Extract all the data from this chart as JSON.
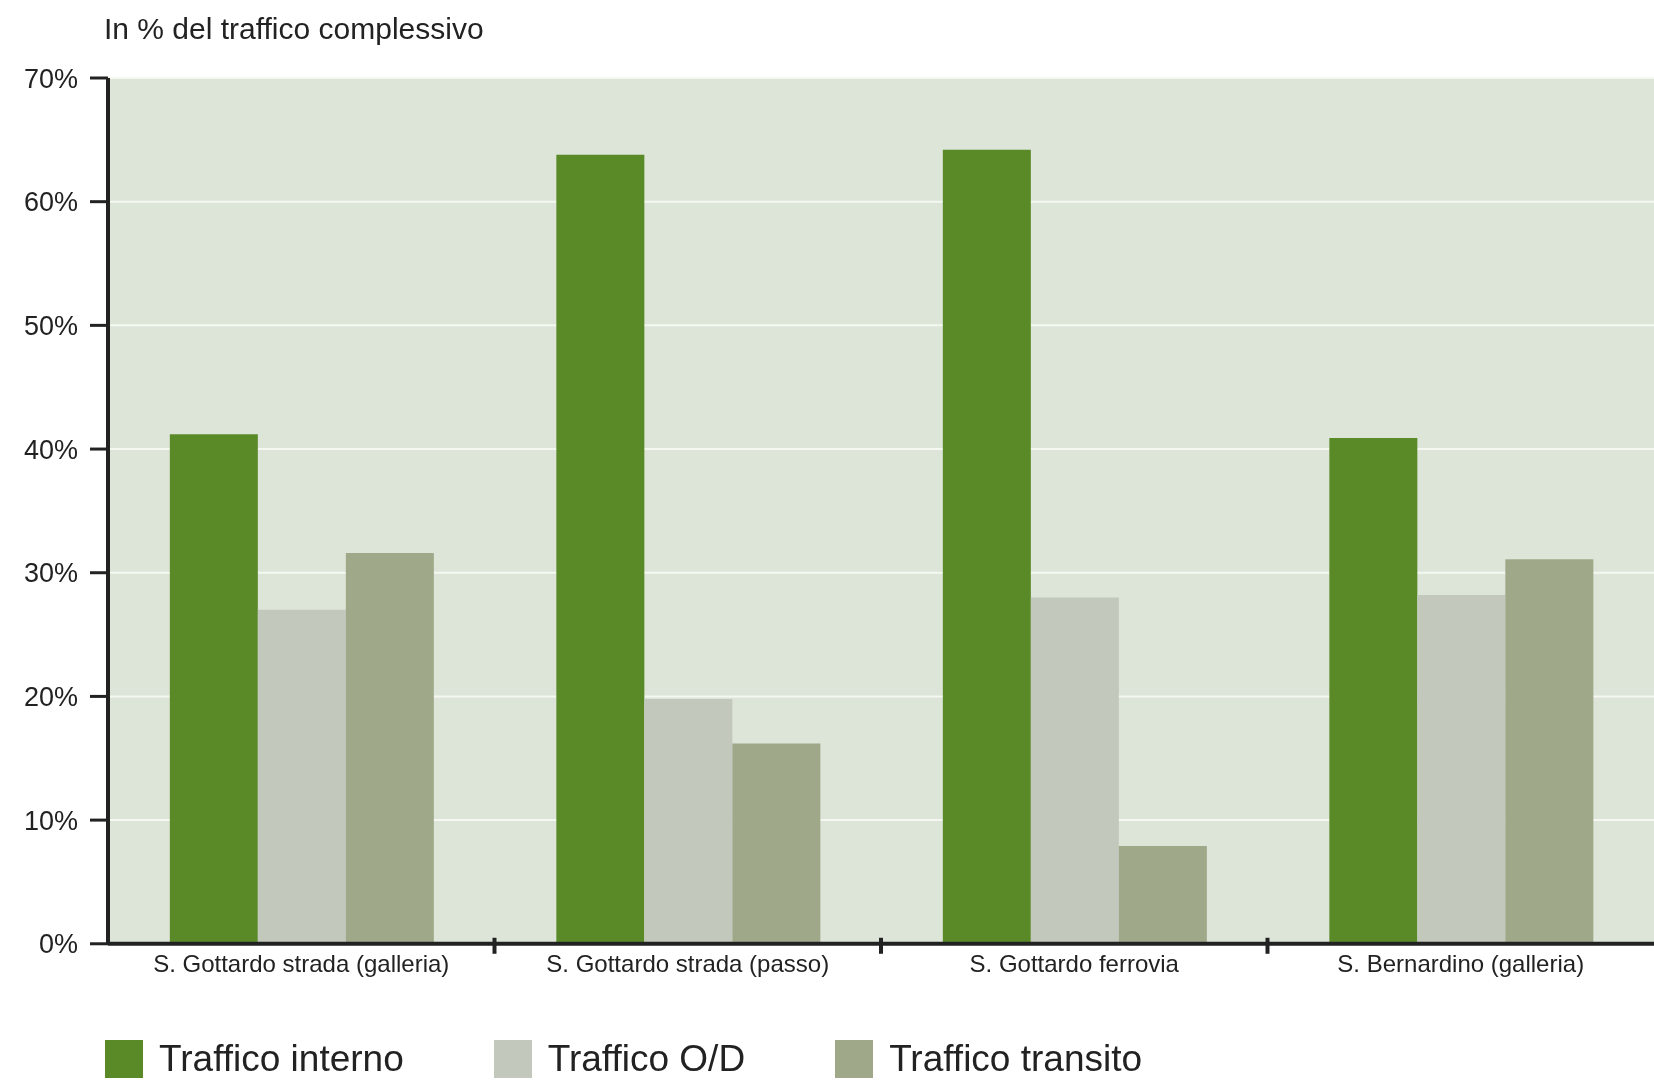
{
  "chart_data": {
    "type": "bar",
    "ylabel": "In % del traffico complessivo",
    "categories": [
      "S. Gottardo strada (galleria)",
      "S. Gottardo strada (passo)",
      "S. Gottardo ferrovia",
      "S. Bernardino (galleria)"
    ],
    "series": [
      {
        "name": "Traffico interno",
        "color": "#5a8a28",
        "values": [
          41.2,
          63.8,
          64.2,
          40.9
        ]
      },
      {
        "name": "Traffico O/D",
        "color": "#c2c8bb",
        "values": [
          27.0,
          19.8,
          28.0,
          28.2
        ]
      },
      {
        "name": "Traffico transito",
        "color": "#a0a88a",
        "values": [
          31.6,
          16.2,
          7.9,
          31.1
        ]
      }
    ],
    "ylim": [
      0,
      70
    ],
    "yticks": [
      {
        "value": 0,
        "label": "0%"
      },
      {
        "value": 10,
        "label": "10%"
      },
      {
        "value": 20,
        "label": "20%"
      },
      {
        "value": 30,
        "label": "30%"
      },
      {
        "value": 40,
        "label": "40%"
      },
      {
        "value": 50,
        "label": "50%"
      },
      {
        "value": 60,
        "label": "60%"
      },
      {
        "value": 70,
        "label": "70%"
      }
    ],
    "grid": "y",
    "legend": "bottom left"
  }
}
